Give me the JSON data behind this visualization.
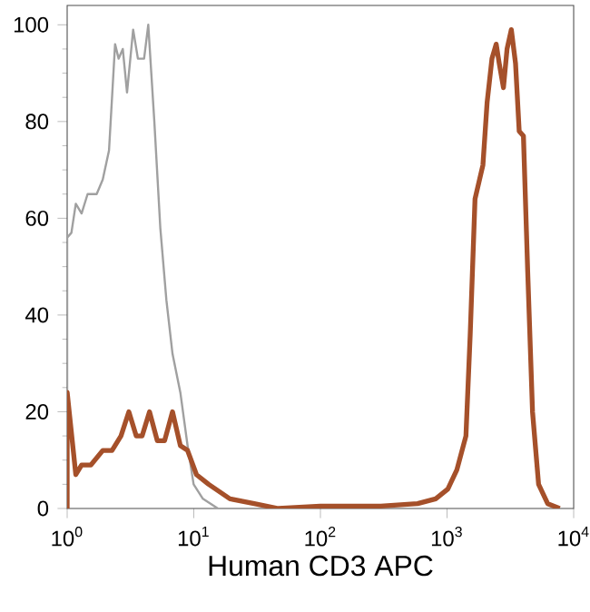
{
  "chart_data": {
    "type": "line",
    "xlabel": "Human CD3  APC",
    "log": "x",
    "grid": false,
    "marker": "none",
    "line_style": "solid",
    "xlim": [
      1,
      10000
    ],
    "ylim": [
      0,
      104
    ],
    "xticks": [
      {
        "value": 1,
        "label": "10$^{0}$"
      },
      {
        "value": 10,
        "label": "10$^{1}$"
      },
      {
        "value": 100,
        "label": "10$^{2}$"
      },
      {
        "value": 1000,
        "label": "10$^{3}$"
      },
      {
        "value": 10000,
        "label": "10$^{4}$"
      }
    ],
    "yticks": [
      0,
      20,
      40,
      60,
      80,
      100
    ],
    "series": [
      {
        "color": "#a0a0a0",
        "x": [
          1.0,
          1.0,
          1.08,
          1.17,
          1.3,
          1.45,
          1.71,
          1.91,
          2.14,
          2.39,
          2.55,
          2.75,
          2.97,
          3.32,
          3.62,
          4.05,
          4.37,
          4.88,
          5.44,
          6.08,
          6.79,
          7.83,
          8.93,
          9.97,
          11.8,
          15.5
        ],
        "values": [
          0,
          56,
          57,
          63,
          61,
          65,
          65,
          68,
          74,
          96,
          93,
          95,
          86,
          99,
          93,
          93,
          100,
          80,
          58,
          43,
          32,
          24,
          13,
          5,
          2,
          0
        ]
      },
      {
        "color": "#a5502a",
        "x": [
          1.0,
          1.0,
          1.17,
          1.3,
          1.54,
          1.91,
          2.26,
          2.66,
          3.07,
          3.51,
          3.91,
          4.47,
          5.15,
          5.88,
          6.79,
          7.83,
          8.93,
          10.5,
          13.1,
          19.3,
          30,
          46.5,
          100,
          300,
          585,
          813,
          1014,
          1196,
          1410,
          1524,
          1663,
          1920,
          2073,
          2263,
          2445,
          2583,
          2789,
          2978,
          3219,
          3475,
          3715,
          4012,
          4335,
          4732,
          5284,
          6233,
          7762
        ],
        "values": [
          0,
          24,
          7,
          9,
          9,
          12,
          12,
          15,
          20,
          15,
          15,
          20,
          14,
          14,
          20,
          13,
          12,
          7,
          5,
          2,
          1,
          0,
          0.5,
          0.5,
          1,
          2,
          4,
          8,
          15,
          36,
          64,
          71,
          84,
          93,
          96,
          92,
          87,
          95,
          99,
          92,
          78,
          77,
          49,
          20,
          5,
          1,
          0
        ]
      }
    ]
  }
}
